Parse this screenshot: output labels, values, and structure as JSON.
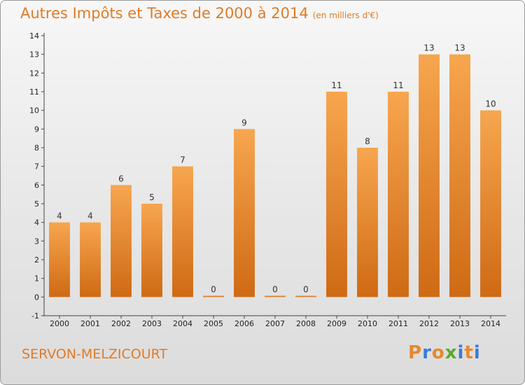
{
  "header": {
    "title": "Autres Impôts et Taxes de 2000 à 2014",
    "unit": "(en milliers d'€)"
  },
  "footer": {
    "commune": "SERVON-MELZICOURT",
    "brand_letters": [
      "P",
      "r",
      "o",
      "x",
      "i",
      "t",
      "i"
    ]
  },
  "colors": {
    "accent": "#e07b26",
    "bar_light": "#f7a64f",
    "bar_dark": "#cf6a14",
    "brand": [
      "#e8892a",
      "#3a7bd5",
      "#e8892a",
      "#5aaa2a",
      "#3a7bd5",
      "#e8892a",
      "#3a7bd5"
    ]
  },
  "chart_data": {
    "type": "bar",
    "title": "Autres Impôts et Taxes de 2000 à 2014",
    "subtitle": "(en milliers d'€)",
    "categories": [
      "2000",
      "2001",
      "2002",
      "2003",
      "2004",
      "2005",
      "2006",
      "2007",
      "2008",
      "2009",
      "2010",
      "2011",
      "2012",
      "2013",
      "2014"
    ],
    "values": [
      4,
      4,
      6,
      5,
      7,
      0,
      9,
      0,
      0,
      11,
      8,
      11,
      13,
      13,
      10
    ],
    "value_labels": [
      "4",
      "4",
      "6",
      "5",
      "7",
      "0",
      "9",
      "0",
      "0",
      "11",
      "8",
      "11",
      "13",
      "13",
      "10"
    ],
    "ylim": [
      -1,
      14
    ],
    "yticks": [
      "14",
      "13",
      "12",
      "11",
      "10",
      "9",
      "8",
      "7",
      "6",
      "5",
      "4",
      "3",
      "2",
      "1",
      "0",
      "-1"
    ],
    "ytick_values": [
      14,
      13,
      12,
      11,
      10,
      9,
      8,
      7,
      6,
      5,
      4,
      3,
      2,
      1,
      0,
      -1
    ],
    "grid": false,
    "legend": "none"
  }
}
